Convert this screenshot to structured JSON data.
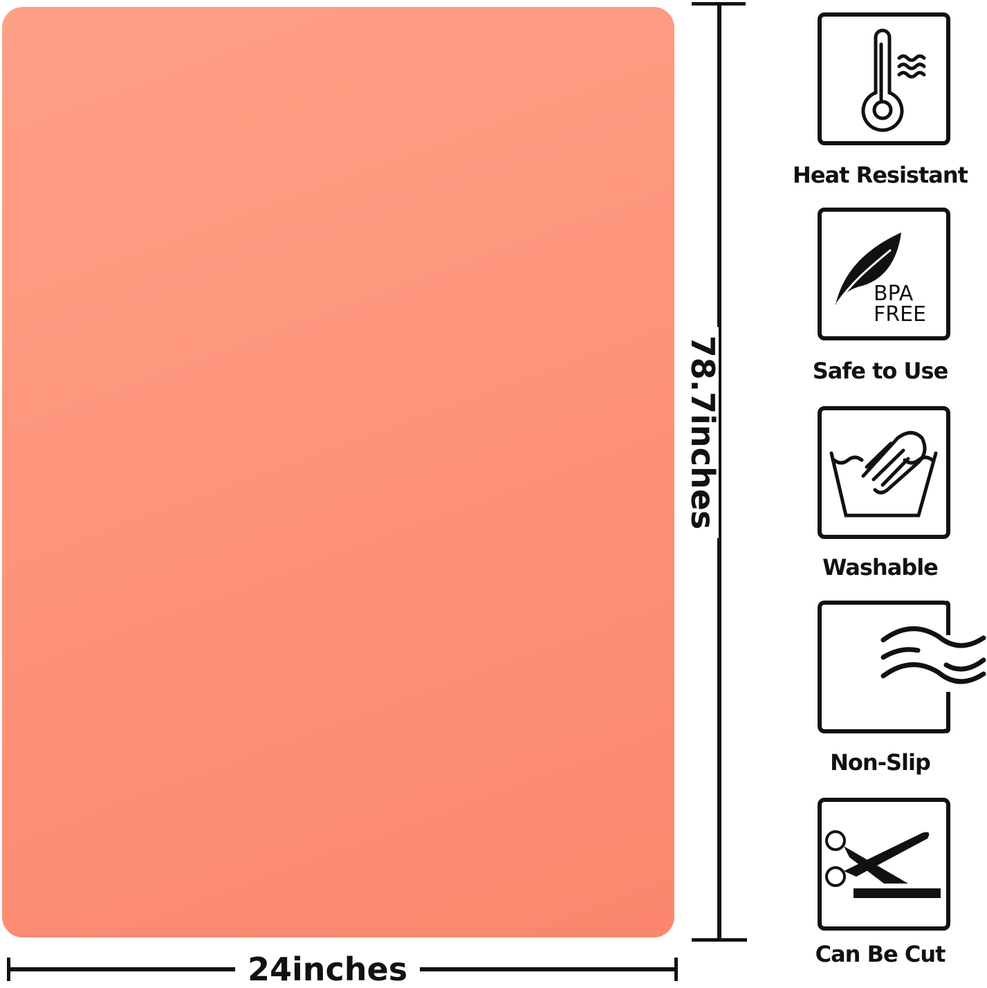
{
  "product": {
    "color": "#fd9a80"
  },
  "dimensions": {
    "height_label": "78.7inches",
    "width_label": "24inches"
  },
  "features": [
    {
      "label": "Heat Resistant",
      "icon": "thermometer-icon"
    },
    {
      "label": "Safe to Use",
      "icon": "bpa-free-leaf-icon",
      "icon_text": [
        "BPA",
        "FREE"
      ]
    },
    {
      "label": "Washable",
      "icon": "hand-wash-icon"
    },
    {
      "label": "Non-Slip",
      "icon": "non-slip-waves-icon"
    },
    {
      "label": "Can Be Cut",
      "icon": "scissors-icon"
    }
  ]
}
